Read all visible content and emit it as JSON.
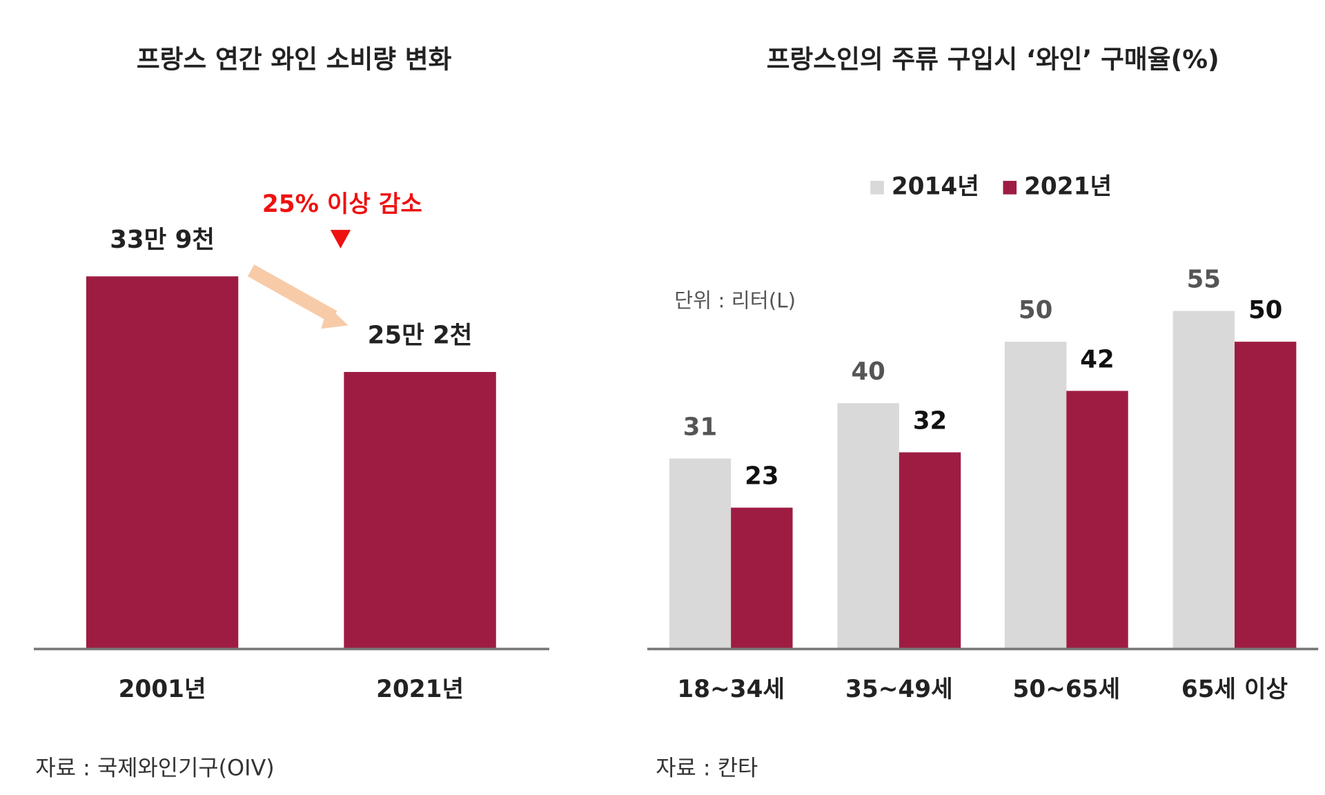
{
  "chart_data": [
    {
      "type": "bar",
      "title": "프랑스 연간 와인 소비량 변화",
      "categories": [
        "2001년",
        "2021년"
      ],
      "values": [
        339000,
        252000
      ],
      "value_labels": [
        "33만 9천",
        "25만 2천"
      ],
      "color": "#9e1c42",
      "annotation": "25% 이상 감소",
      "annotation_color": "#ee1111",
      "source": "자료 : 국제와인기구(OIV)"
    },
    {
      "type": "bar",
      "title": "프랑스인의 주류 구입시 ‘와인’ 구매율(%)",
      "categories": [
        "18~34세",
        "35~49세",
        "50~65세",
        "65세 이상"
      ],
      "series": [
        {
          "name": "2014년",
          "color": "#d9d9d9",
          "values": [
            31,
            40,
            50,
            55
          ]
        },
        {
          "name": "2021년",
          "color": "#9e1c42",
          "values": [
            23,
            32,
            42,
            50
          ]
        }
      ],
      "unit_note": "단위 : 리터(L)",
      "source": "자료 : 칸타"
    }
  ]
}
